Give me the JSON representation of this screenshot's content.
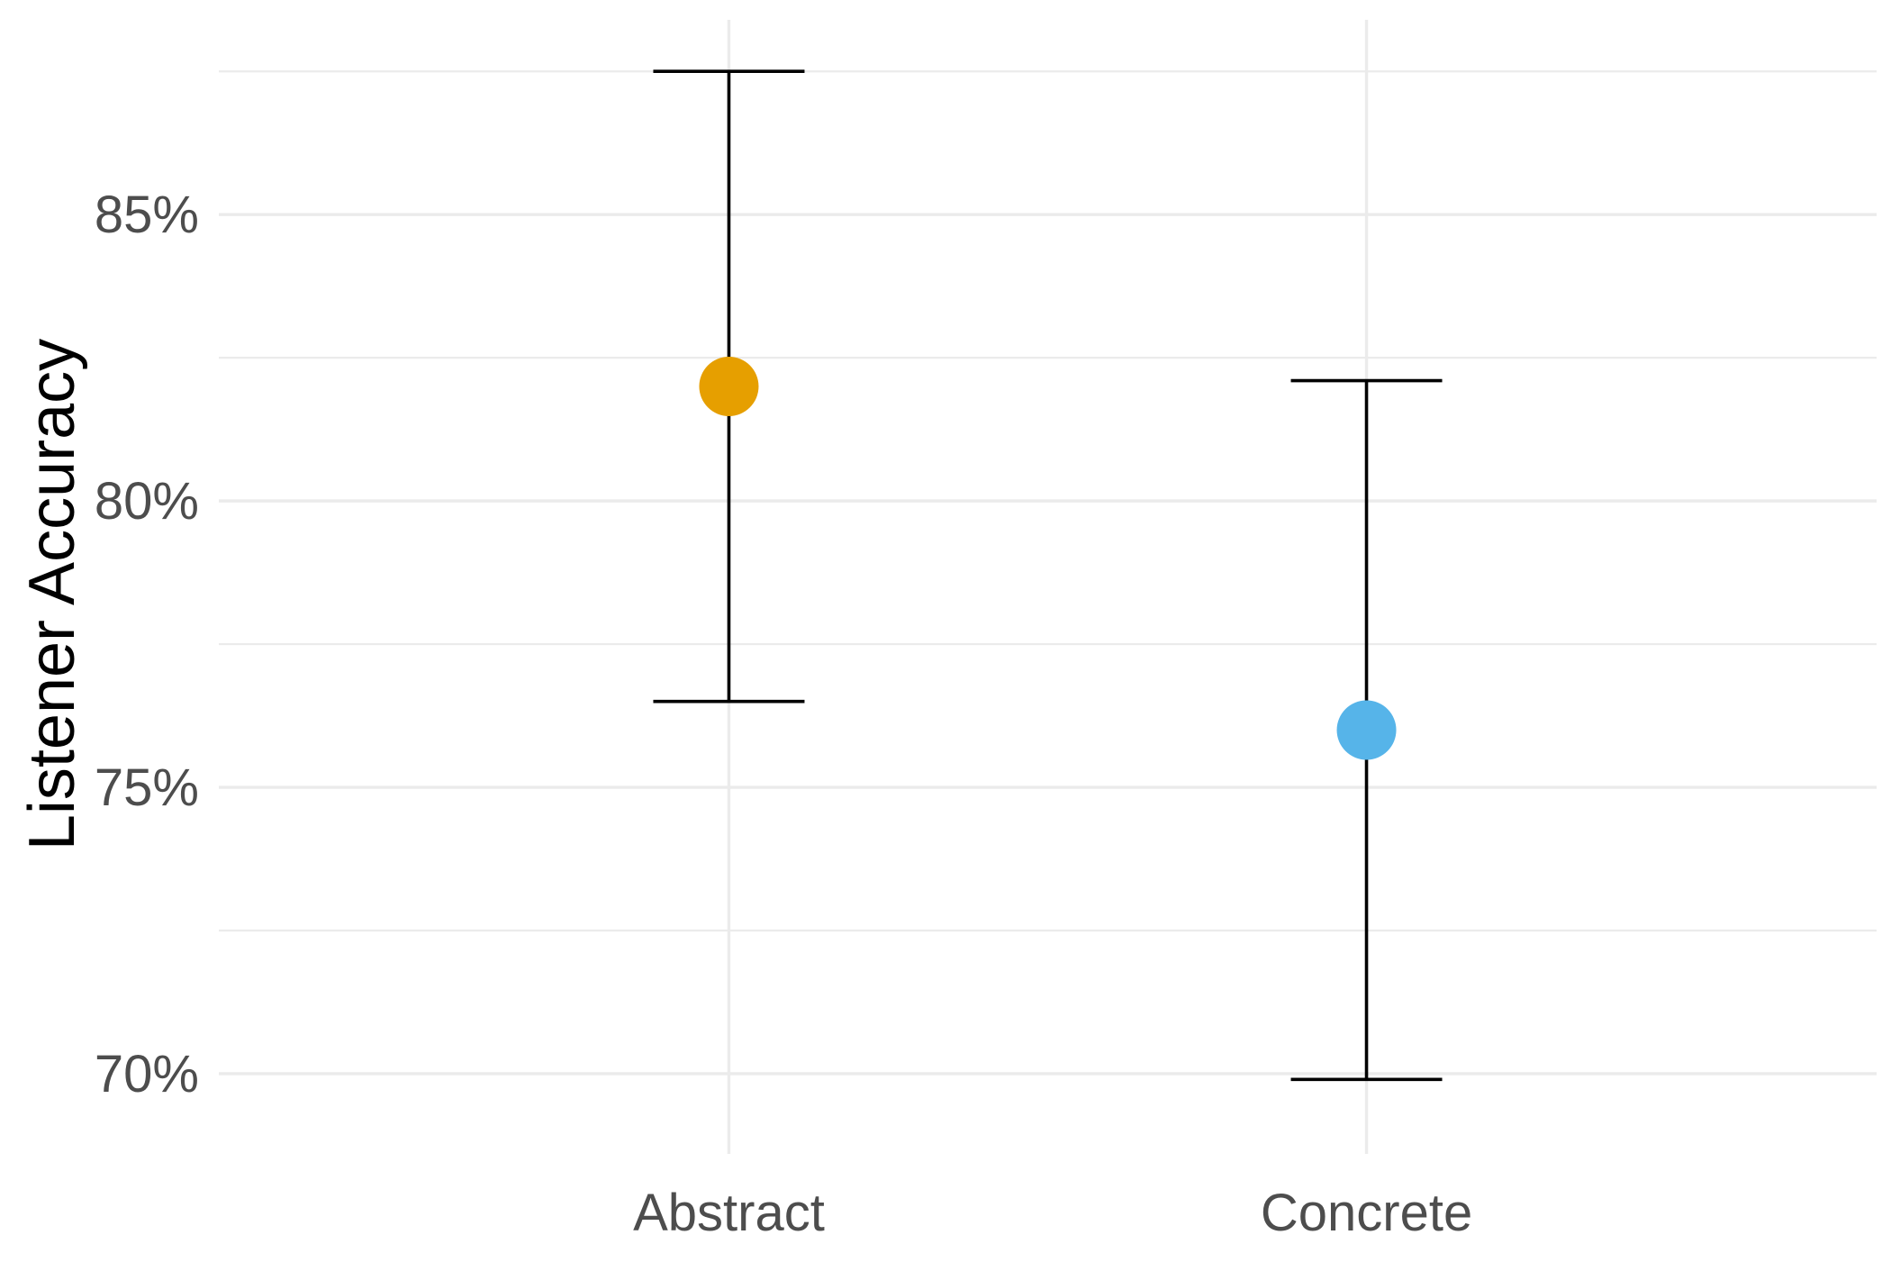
{
  "chart_data": {
    "type": "scatter",
    "subtype": "point-with-error-bars",
    "title": "",
    "xlabel": "",
    "ylabel": "Listener Accuracy",
    "categories": [
      "Abstract",
      "Concrete"
    ],
    "points": [
      {
        "category": "Abstract",
        "y": 82.0,
        "ymin": 76.5,
        "ymax": 87.5,
        "color": "#E69F00"
      },
      {
        "category": "Concrete",
        "y": 76.0,
        "ymin": 69.9,
        "ymax": 82.1,
        "color": "#56B4E9"
      }
    ],
    "ylim": [
      68.6,
      88.4
    ],
    "y_major_ticks": [
      70,
      75,
      80,
      85
    ],
    "y_minor_ticks": [
      72.5,
      77.5,
      82.5,
      87.5
    ],
    "y_tick_labels": [
      "70%",
      "75%",
      "80%",
      "85%"
    ],
    "y_unit": "%",
    "grid": true,
    "legend": "none",
    "theme": "minimal"
  }
}
